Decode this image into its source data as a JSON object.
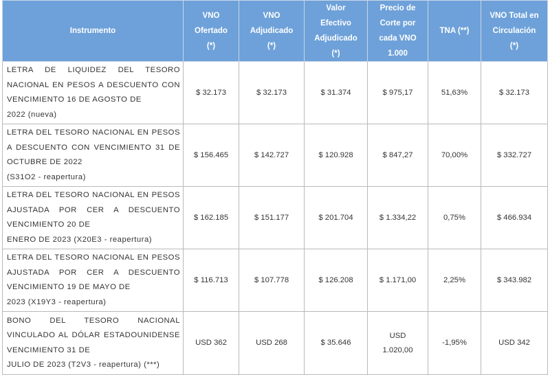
{
  "table": {
    "headers": [
      {
        "lines": [
          "Instrumento"
        ]
      },
      {
        "lines": [
          "VNO",
          "Ofertado",
          "(*)"
        ]
      },
      {
        "lines": [
          "VNO",
          "Adjudicado",
          "(*)"
        ]
      },
      {
        "lines": [
          "Valor",
          "Efectivo",
          "Adjudicado",
          "(*)"
        ]
      },
      {
        "lines": [
          "Precio de",
          "Corte por",
          "cada VNO",
          "1.000"
        ]
      },
      {
        "lines": [
          "TNA (**)"
        ]
      },
      {
        "lines": [
          "VNO Total en",
          "Circulación",
          "(*)"
        ]
      }
    ],
    "rows": [
      {
        "instrumento": "LETRA DE LIQUIDEZ DEL TESORO NACIONAL EN PESOS A DESCUENTO CON VENCIMIENTO 16 DE AGOSTO DE",
        "instrumento_tail": "2022 (nueva)",
        "vno_ofertado": "$ 32.173",
        "vno_adjudicado": "$ 32.173",
        "valor_efectivo": "$ 31.374",
        "precio_corte": "$ 975,17",
        "tna": "51,63%",
        "vno_total": "$ 32.173"
      },
      {
        "instrumento": "LETRA DEL TESORO NACIONAL EN PESOS A DESCUENTO CON VENCIMIENTO 31 DE OCTUBRE DE 2022",
        "instrumento_tail": "(S31O2 - reapertura)",
        "vno_ofertado": "$ 156.465",
        "vno_adjudicado": "$ 142.727",
        "valor_efectivo": "$ 120.928",
        "precio_corte": "$ 847,27",
        "tna": "70,00%",
        "vno_total": "$ 332.727"
      },
      {
        "instrumento": "LETRA DEL TESORO NACIONAL EN PESOS AJUSTADA POR CER A DESCUENTO VENCIMIENTO 20 DE",
        "instrumento_tail": "ENERO DE 2023 (X20E3 - reapertura)",
        "vno_ofertado": "$ 162.185",
        "vno_adjudicado": "$ 151.177",
        "valor_efectivo": "$ 201.704",
        "precio_corte": "$ 1.334,22",
        "tna": "0,75%",
        "vno_total": "$ 466.934"
      },
      {
        "instrumento": "LETRA DEL TESORO NACIONAL EN PESOS AJUSTADA POR CER A DESCUENTO VENCIMIENTO 19 DE MAYO DE",
        "instrumento_tail": "2023 (X19Y3 - reapertura)",
        "vno_ofertado": "$ 116.713",
        "vno_adjudicado": "$ 107.778",
        "valor_efectivo": "$ 126.208",
        "precio_corte": "$ 1.171,00",
        "tna": "2,25%",
        "vno_total": "$ 343.982"
      },
      {
        "instrumento": "BONO DEL TESORO NACIONAL VINCULADO AL DÓLAR ESTADOUNIDENSE VENCIMIENTO 31 DE",
        "instrumento_tail": "JULIO DE 2023 (T2V3 - reapertura) (***)",
        "vno_ofertado": "USD 362",
        "vno_adjudicado": "USD 268",
        "valor_efectivo": "$ 35.646",
        "precio_corte_lines": [
          "USD",
          "1.020,00"
        ],
        "tna": "-1,95%",
        "vno_total": "USD 342"
      }
    ]
  }
}
